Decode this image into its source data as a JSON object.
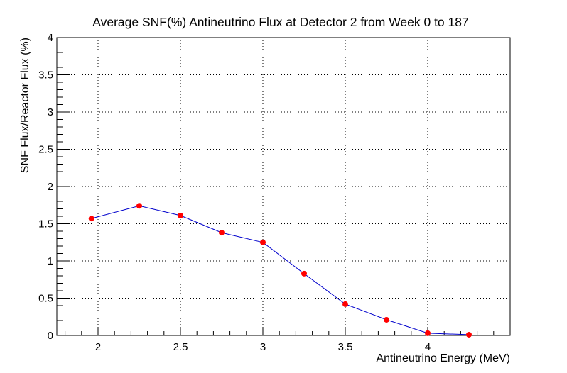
{
  "chart_data": {
    "type": "line",
    "title": "Average SNF(%) Antineutrino Flux at Detector 2 from Week 0 to 187",
    "xlabel": "Antineutrino Energy (MeV)",
    "ylabel": "SNF Flux/Reactor Flux (%)",
    "xlim": [
      1.75,
      4.5
    ],
    "ylim": [
      0,
      4
    ],
    "xticks": [
      2,
      2.5,
      3,
      3.5,
      4
    ],
    "xtick_labels": [
      "2",
      "2.5",
      "3",
      "3.5",
      "4"
    ],
    "yticks": [
      0,
      0.5,
      1,
      1.5,
      2,
      2.5,
      3,
      3.5,
      4
    ],
    "ytick_labels": [
      "0",
      "0.5",
      "1",
      "1.5",
      "2",
      "2.5",
      "3",
      "3.5",
      "4"
    ],
    "grid": true,
    "line_color": "#0000cc",
    "marker_color": "#ff0000",
    "series": [
      {
        "x": [
          1.96,
          2.25,
          2.5,
          2.75,
          3.0,
          3.25,
          3.5,
          3.75,
          4.0,
          4.25
        ],
        "y": [
          1.57,
          1.74,
          1.61,
          1.38,
          1.25,
          0.83,
          0.42,
          0.21,
          0.03,
          0.01
        ]
      }
    ]
  }
}
